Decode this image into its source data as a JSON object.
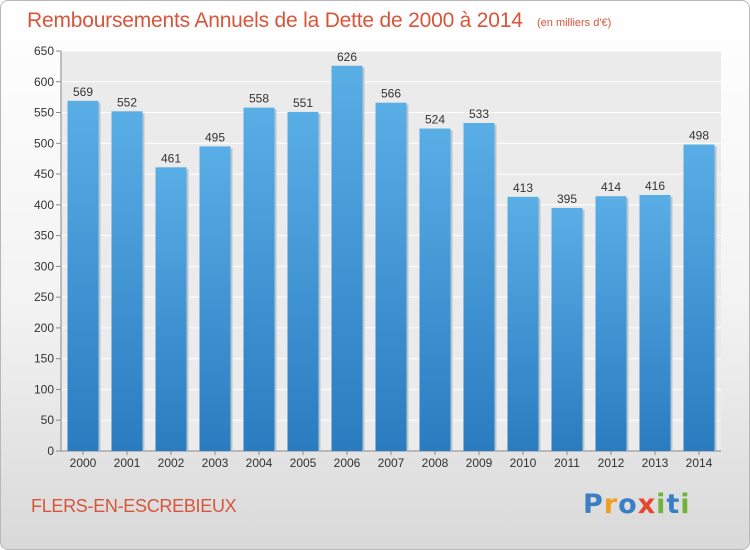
{
  "page": {
    "title": "Remboursements Annuels de la Dette de 2000 à 2014",
    "subtitle": "(en milliers d'€)",
    "commune": "FLERS-EN-ESCREBIEUX",
    "brand_letters": [
      {
        "char": "P",
        "color": "#3a7fc4"
      },
      {
        "char": "r",
        "color": "#f0a020"
      },
      {
        "char": "o",
        "color": "#3a7fc4"
      },
      {
        "char": "x",
        "color": "#e8452e"
      },
      {
        "char": "i",
        "color": "#6fb33a"
      },
      {
        "char": "t",
        "color": "#3a7fc4"
      },
      {
        "char": "i",
        "color": "#6fb33a"
      }
    ]
  },
  "chart_data": {
    "type": "bar",
    "title": "Remboursements Annuels de la Dette de 2000 à 2014",
    "xlabel": "",
    "ylabel": "",
    "categories": [
      "2000",
      "2001",
      "2002",
      "2003",
      "2004",
      "2005",
      "2006",
      "2007",
      "2008",
      "2009",
      "2010",
      "2011",
      "2012",
      "2013",
      "2014"
    ],
    "values": [
      569,
      552,
      461,
      495,
      558,
      551,
      626,
      566,
      524,
      533,
      413,
      395,
      414,
      416,
      498
    ],
    "ylim": [
      0,
      650
    ],
    "yticks": [
      0,
      50,
      100,
      150,
      200,
      250,
      300,
      350,
      400,
      450,
      500,
      550,
      600,
      650
    ],
    "grid": true,
    "bar_color_top": "#5aaee6",
    "bar_color_bottom": "#2a7cc0",
    "text_color": "#d9553a"
  }
}
